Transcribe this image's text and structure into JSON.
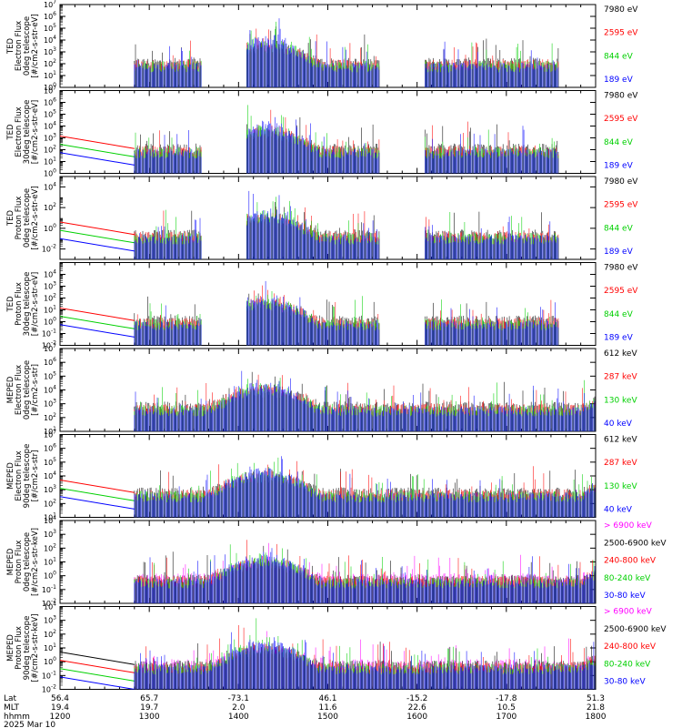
{
  "colors": {
    "black": "#000000",
    "red": "#ff0000",
    "green": "#00d000",
    "blue": "#0000ff",
    "magenta": "#ff00ff"
  },
  "chart_data": [
    {
      "type": "line",
      "ylabel": [
        "TED",
        "Electron Flux",
        "0deg telescope",
        "[#/cm2-s-str-eV]"
      ],
      "log_range": [
        0,
        7
      ],
      "ticks": [
        0,
        1,
        2,
        3,
        4,
        5,
        6,
        7
      ],
      "legend": [
        {
          "label": "7980 eV",
          "color": "#000000"
        },
        {
          "label": "2595 eV",
          "color": "#ff0000"
        },
        {
          "label": "844 eV",
          "color": "#00d000"
        },
        {
          "label": "189 eV",
          "color": "#0000ff"
        }
      ]
    },
    {
      "type": "line",
      "ylabel": [
        "TED",
        "Electron Flux",
        "30deg telescope",
        "[#/cm2-s-str-eV]"
      ],
      "log_range": [
        0,
        7
      ],
      "ticks": [
        0,
        1,
        2,
        3,
        4,
        5,
        6,
        7
      ],
      "legend": [
        {
          "label": "7980 eV",
          "color": "#000000"
        },
        {
          "label": "2595 eV",
          "color": "#ff0000"
        },
        {
          "label": "844 eV",
          "color": "#00d000"
        },
        {
          "label": "189 eV",
          "color": "#0000ff"
        }
      ]
    },
    {
      "type": "line",
      "ylabel": [
        "TED",
        "Proton Flux",
        "0deg telescope",
        "[#/cm2-s-str-eV]"
      ],
      "log_range": [
        -3,
        5
      ],
      "ticks": [
        -2,
        0,
        2,
        4
      ],
      "legend": [
        {
          "label": "7980 eV",
          "color": "#000000"
        },
        {
          "label": "2595 eV",
          "color": "#ff0000"
        },
        {
          "label": "844 eV",
          "color": "#00d000"
        },
        {
          "label": "189 eV",
          "color": "#0000ff"
        }
      ]
    },
    {
      "type": "line",
      "ylabel": [
        "TED",
        "Proton Flux",
        "30deg telescope",
        "[#/cm2-s-str-eV]"
      ],
      "log_range": [
        -2,
        5
      ],
      "ticks": [
        -2,
        -1,
        0,
        1,
        2,
        3,
        4
      ],
      "legend": [
        {
          "label": "7980 eV",
          "color": "#000000"
        },
        {
          "label": "2595 eV",
          "color": "#ff0000"
        },
        {
          "label": "844 eV",
          "color": "#00d000"
        },
        {
          "label": "189 eV",
          "color": "#0000ff"
        }
      ]
    },
    {
      "type": "line",
      "ylabel": [
        "MEPED",
        "Electron Flux",
        "0deg telescope",
        "[#/cm2-s-str]"
      ],
      "log_range": [
        1,
        7
      ],
      "ticks": [
        1,
        2,
        3,
        4,
        5,
        6,
        7
      ],
      "legend": [
        {
          "label": "612 keV",
          "color": "#000000"
        },
        {
          "label": "287 keV",
          "color": "#ff0000"
        },
        {
          "label": "130 keV",
          "color": "#00d000"
        },
        {
          "label": "40 keV",
          "color": "#0000ff"
        }
      ]
    },
    {
      "type": "line",
      "ylabel": [
        "MEPED",
        "Electron Flux",
        "90deg telescope",
        "[#/cm2-s-str]"
      ],
      "log_range": [
        1,
        7
      ],
      "ticks": [
        1,
        2,
        3,
        4,
        5,
        6,
        7
      ],
      "legend": [
        {
          "label": "612 keV",
          "color": "#000000"
        },
        {
          "label": "287 keV",
          "color": "#ff0000"
        },
        {
          "label": "130 keV",
          "color": "#00d000"
        },
        {
          "label": "40 keV",
          "color": "#0000ff"
        }
      ]
    },
    {
      "type": "line",
      "ylabel": [
        "MEPED",
        "Proton Flux",
        "0deg telescope",
        "[#/cm2-s-str-keV]"
      ],
      "log_range": [
        -2,
        4
      ],
      "ticks": [
        -2,
        -1,
        0,
        1,
        2,
        3,
        4
      ],
      "legend": [
        {
          "label": "> 6900 keV",
          "color": "#ff00ff"
        },
        {
          "label": "2500-6900 keV",
          "color": "#000000"
        },
        {
          "label": "240-800 keV",
          "color": "#ff0000"
        },
        {
          "label": "80-240 keV",
          "color": "#00d000"
        },
        {
          "label": "30-80 keV",
          "color": "#0000ff"
        }
      ]
    },
    {
      "type": "line",
      "ylabel": [
        "MEPED",
        "Proton Flux",
        "90deg telescope",
        "[#/cm2-s-str-keV]"
      ],
      "log_range": [
        -2,
        4
      ],
      "ticks": [
        -2,
        -1,
        0,
        1,
        2,
        3,
        4
      ],
      "legend": [
        {
          "label": "> 6900 keV",
          "color": "#ff00ff"
        },
        {
          "label": "2500-6900 keV",
          "color": "#000000"
        },
        {
          "label": "240-800 keV",
          "color": "#ff0000"
        },
        {
          "label": "80-240 keV",
          "color": "#00d000"
        },
        {
          "label": "30-80 keV",
          "color": "#0000ff"
        }
      ]
    }
  ],
  "x_axis": {
    "range_hhmm": [
      "1200",
      "1800"
    ],
    "row_labels": [
      "Lat",
      "MLT",
      "hhmm"
    ],
    "columns": [
      {
        "lat": "56.4",
        "mlt": "19.4",
        "hhmm": "1200"
      },
      {
        "lat": "65.7",
        "mlt": "19.7",
        "hhmm": "1300"
      },
      {
        "lat": "-73.1",
        "mlt": "2.0",
        "hhmm": "1400"
      },
      {
        "lat": "46.1",
        "mlt": "11.6",
        "hhmm": "1500"
      },
      {
        "lat": "-15.2",
        "mlt": "22.6",
        "hhmm": "1600"
      },
      {
        "lat": "-17.8",
        "mlt": "10.5",
        "hhmm": "1700"
      },
      {
        "lat": "51.3",
        "mlt": "21.8",
        "hhmm": "1800"
      }
    ],
    "date": "2025 Mar 10"
  }
}
